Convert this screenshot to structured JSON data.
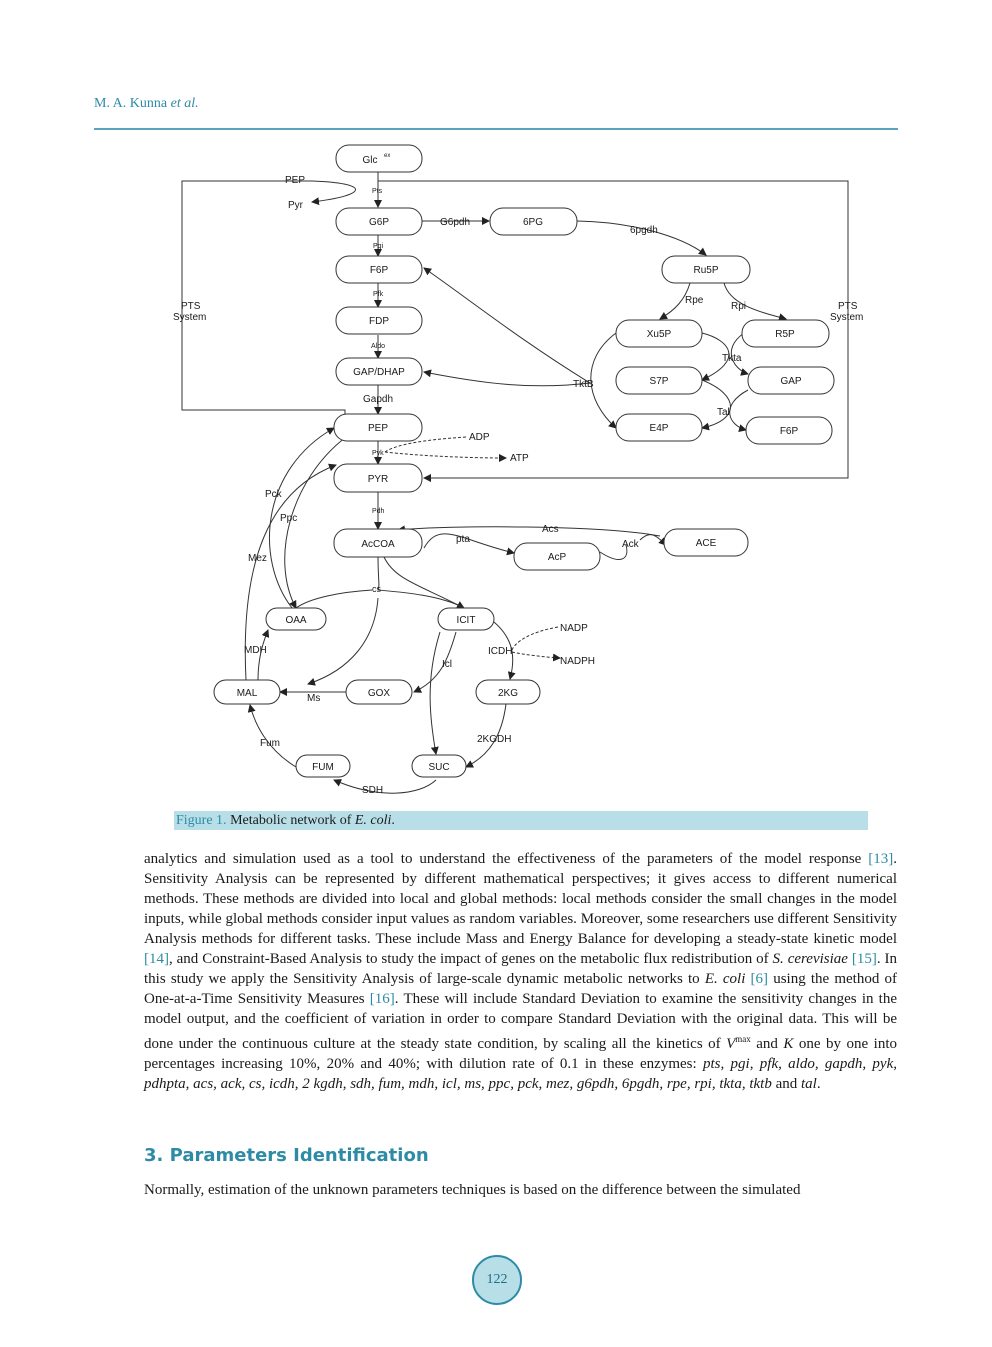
{
  "header": {
    "author": "M. A. Kunna",
    "etal": "et al."
  },
  "figure": {
    "nodes": [
      {
        "id": "glc",
        "label": "Glc",
        "sup": "ex"
      },
      {
        "id": "g6p",
        "label": "G6P"
      },
      {
        "id": "6pg",
        "label": "6PG"
      },
      {
        "id": "f6p",
        "label": "F6P"
      },
      {
        "id": "ru5p",
        "label": "Ru5P"
      },
      {
        "id": "fdp",
        "label": "FDP"
      },
      {
        "id": "xu5p",
        "label": "Xu5P"
      },
      {
        "id": "r5p",
        "label": "R5P"
      },
      {
        "id": "gap_dhap",
        "label": "GAP/DHAP"
      },
      {
        "id": "s7p",
        "label": "S7P"
      },
      {
        "id": "gap",
        "label": "GAP"
      },
      {
        "id": "pep",
        "label": "PEP"
      },
      {
        "id": "e4p",
        "label": "E4P"
      },
      {
        "id": "f6p2",
        "label": "F6P"
      },
      {
        "id": "pyr",
        "label": "PYR"
      },
      {
        "id": "accoa",
        "label": "AcCOA"
      },
      {
        "id": "acp",
        "label": "AcP"
      },
      {
        "id": "ace",
        "label": "ACE"
      },
      {
        "id": "oaa",
        "label": "OAA"
      },
      {
        "id": "icit",
        "label": "ICIT"
      },
      {
        "id": "mal",
        "label": "MAL"
      },
      {
        "id": "gox",
        "label": "GOX"
      },
      {
        "id": "2kg",
        "label": "2KG"
      },
      {
        "id": "fum",
        "label": "FUM"
      },
      {
        "id": "suc",
        "label": "SUC"
      }
    ],
    "labels": {
      "pep_top": "PEP",
      "pyr_top": "Pyr",
      "pts": "Pts",
      "g6pdh": "G6pdh",
      "pgdh6": "6pgdh",
      "pgi": "Pgi",
      "rpe": "Rpe",
      "rpi": "Rpi",
      "pfk": "Pfk",
      "pts_sys_l1": "PTS",
      "pts_sys_l2": "System",
      "aldo": "Aldo",
      "tkta": "Tkta",
      "tktb": "TktB",
      "gapdh": "Gapdh",
      "tal": "Tal",
      "adp": "ADP",
      "pyk": "Pyk",
      "atp": "ATP",
      "pck": "Pck",
      "ppc": "Ppc",
      "pdh": "Pdh",
      "acs": "Acs",
      "pta": "pta",
      "ack": "Ack",
      "mez": "Mez",
      "cs": "cs",
      "nadp": "NADP",
      "mdh": "MDH",
      "icdh": "ICDH",
      "nadph": "NADPH",
      "icl": "Icl",
      "ms": "Ms",
      "kgdh": "2KGDH",
      "fum": "Fum",
      "sdh": "SDH"
    }
  },
  "caption": {
    "label": "Figure 1.",
    "text": "Metabolic network of ",
    "species": "E. coli",
    "end": "."
  },
  "body": {
    "t01": "analytics and simulation used as a tool to understand the effectiveness of the parameters of the model response ",
    "r13": "[13]",
    "t02": ". Sensitivity Analysis can be represented by different mathematical perspectives; it gives access to different numerical methods. These methods are divided into local and global methods: local methods consider the small changes in the model inputs, while global methods consider input values as random variables. Moreover, some researchers use different Sensitivity Analysis methods for different tasks. These include Mass and Energy Balance for developing a steady-state kinetic model ",
    "r14": "[14]",
    "t03": ", and Constraint-Based Analysis to study the impact of genes on the metabolic flux redistribution of ",
    "scer": "S. cerevisiae",
    "t04": " ",
    "r15": "[15]",
    "t05": ". In this study we apply the Sensitivity Analysis of large-scale dynamic metabolic networks to ",
    "ecoli": "E. coli",
    "t06": " ",
    "r6": "[6]",
    "t07": " using the method of One-at-a-Time Sensitivity Measures ",
    "r16": "[16]",
    "t08": ". These will include Standard Deviation to examine the sensitivity changes in the model output, and the coefficient of variation in order to compare Standard Deviation with the original data. This will be done under the continuous culture at the steady state condition, by scaling all the kinetics of ",
    "vmax": "V",
    "vmax_sup": "max",
    "t09": " and ",
    "k": "K",
    "t10": " one by one into percentages increasing 10%, 20% and 40%; with dilution rate of 0.1 in these enzymes: ",
    "enzymes": "pts, pgi, pfk, aldo, gapdh, pyk, pdhpta, acs, ack, cs, icdh, 2 kgdh, sdh, fum, mdh, icl, ms, ppc, pck, mez, g6pdh, 6pgdh, rpe, rpi, tkta, tktb",
    "t11": " and ",
    "tal": "tal",
    "t12": "."
  },
  "section": {
    "title": "3. Parameters Identification"
  },
  "para2": "Normally, estimation of the unknown parameters techniques is based on the difference between the simulated",
  "page_number": "122"
}
